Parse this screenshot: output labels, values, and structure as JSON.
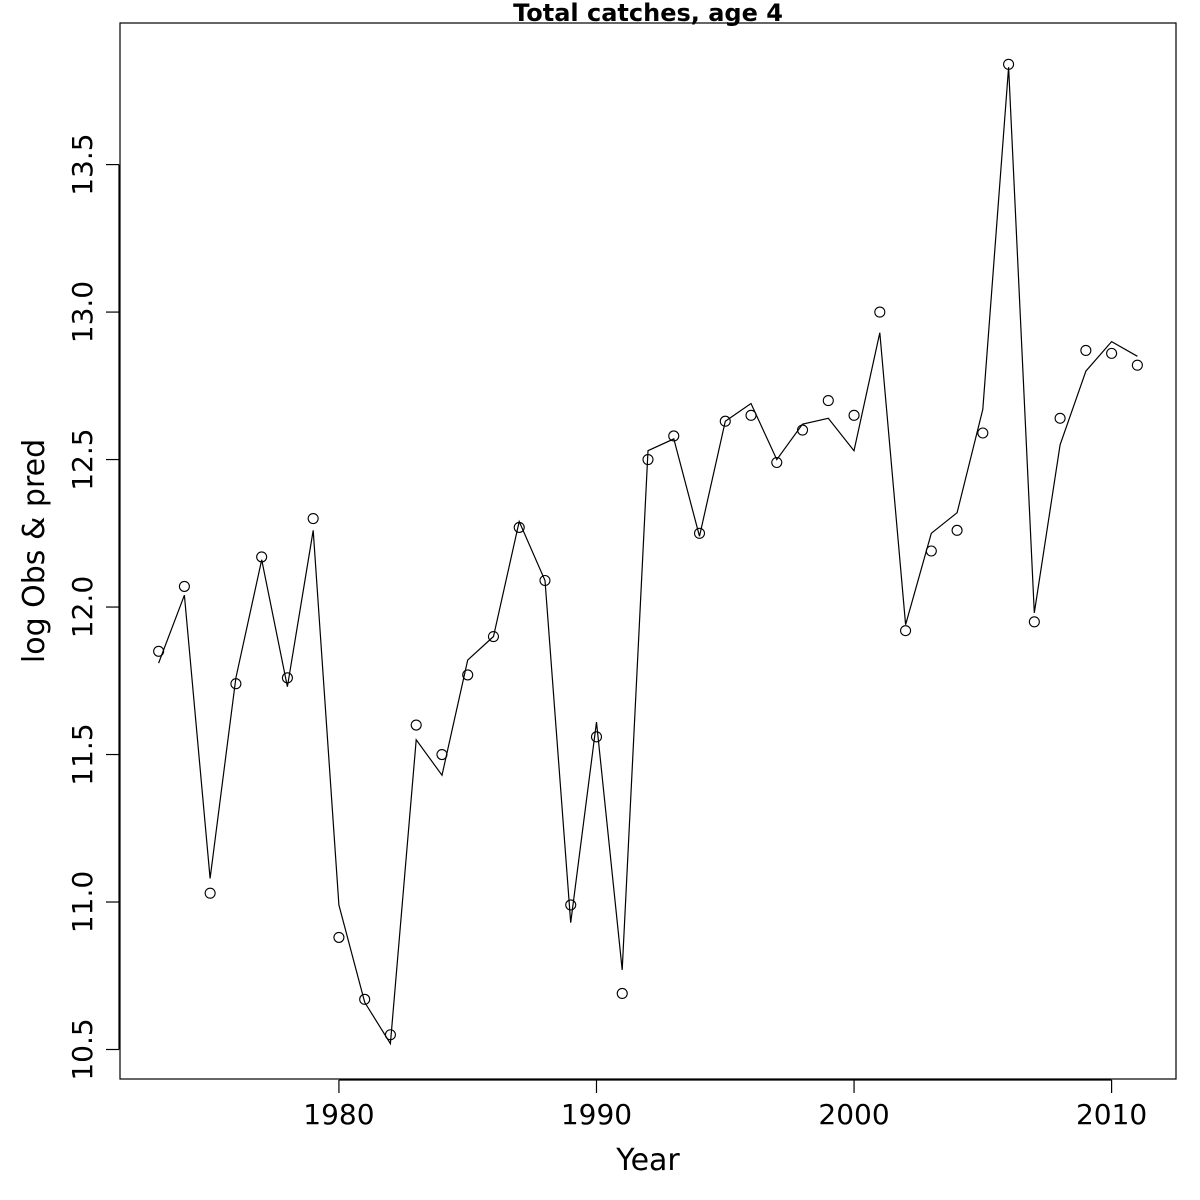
{
  "chart_data": {
    "type": "line",
    "title": "Total catches, age 4",
    "xlabel": "Year",
    "ylabel": "log Obs & pred",
    "xlim": [
      1971.5,
      2012.5
    ],
    "ylim": [
      10.4,
      13.98
    ],
    "x_ticks": [
      1980,
      1990,
      2000,
      2010
    ],
    "x_tick_labels": [
      "1980",
      "1990",
      "2000",
      "2010"
    ],
    "y_ticks": [
      10.5,
      11.0,
      11.5,
      12.0,
      12.5,
      13.0,
      13.5
    ],
    "y_tick_labels": [
      "10.5",
      "11.0",
      "11.5",
      "12.0",
      "12.5",
      "13.0",
      "13.5"
    ],
    "grid": false,
    "legend": "none",
    "x": [
      1973,
      1974,
      1975,
      1976,
      1977,
      1978,
      1979,
      1980,
      1981,
      1982,
      1983,
      1984,
      1985,
      1986,
      1987,
      1988,
      1989,
      1990,
      1991,
      1992,
      1993,
      1994,
      1995,
      1996,
      1997,
      1998,
      1999,
      2000,
      2001,
      2002,
      2003,
      2004,
      2005,
      2006,
      2007,
      2008,
      2009,
      2010,
      2011
    ],
    "series": [
      {
        "style": "points",
        "marker": "open-circle",
        "values": [
          11.85,
          12.07,
          11.03,
          11.74,
          12.17,
          11.76,
          12.3,
          10.88,
          10.67,
          10.55,
          11.6,
          11.5,
          11.77,
          11.9,
          12.27,
          12.09,
          10.99,
          11.56,
          10.69,
          12.5,
          12.58,
          12.25,
          12.63,
          12.65,
          12.49,
          12.6,
          12.7,
          12.65,
          13.0,
          11.92,
          12.19,
          12.26,
          12.59,
          13.84,
          11.95,
          12.64,
          12.87,
          12.86,
          12.82
        ]
      },
      {
        "style": "line",
        "values": [
          11.81,
          12.04,
          11.08,
          11.76,
          12.16,
          11.73,
          12.26,
          10.99,
          10.66,
          10.52,
          11.55,
          11.43,
          11.82,
          11.9,
          12.29,
          12.09,
          10.93,
          11.61,
          10.77,
          12.53,
          12.57,
          12.24,
          12.63,
          12.69,
          12.5,
          12.62,
          12.64,
          12.53,
          12.93,
          11.94,
          12.25,
          12.32,
          12.67,
          13.83,
          11.98,
          12.55,
          12.8,
          12.9,
          12.85
        ]
      }
    ],
    "colors": {
      "line": "#000000",
      "points": "#000000",
      "background": "#ffffff"
    }
  }
}
